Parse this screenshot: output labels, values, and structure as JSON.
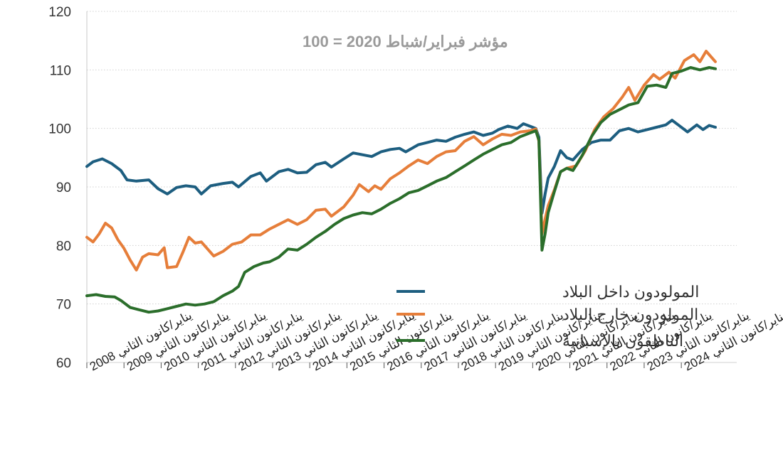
{
  "chart_data": {
    "type": "line",
    "title": "",
    "subtitle": "مؤشر فبراير/شباط 2020 = 100",
    "xlabel": "",
    "ylabel": "",
    "ylim": [
      60,
      120
    ],
    "yticks": [
      60,
      70,
      80,
      90,
      100,
      110,
      120
    ],
    "grid": "horizontal",
    "legend_position": "center-right",
    "x_start": "2008-01",
    "x_end": "2024-12",
    "frequency": "monthly",
    "x_tick_labels": [
      "يناير/كانون الثاني 2008",
      "يناير/كانون الثاني 2009",
      "يناير/كانون الثاني 2010",
      "يناير/كانون الثاني 2011",
      "يناير/كانون الثاني 2012",
      "يناير/كانون الثاني 2013",
      "يناير/كانون الثاني 2014",
      "يناير/كانون الثاني 2015",
      "يناير/كانون الثاني 2016",
      "يناير/كانون الثاني 2017",
      "يناير/كانون الثاني 2018",
      "يناير/كانون الثاني 2019",
      "يناير/كانون الثاني 2020",
      "يناير/كانون الثاني 2021",
      "يناير/كانون الثاني 2022",
      "يناير/كانون الثاني 2023",
      "يناير/كانون الثاني 2024"
    ],
    "series": [
      {
        "name": "المولودون داخل البلاد",
        "color": "#1d5e80",
        "anchors": [
          [
            "2008-01",
            93.5
          ],
          [
            "2008-03",
            94.3
          ],
          [
            "2008-06",
            94.8
          ],
          [
            "2008-09",
            94.0
          ],
          [
            "2008-12",
            92.8
          ],
          [
            "2009-02",
            91.2
          ],
          [
            "2009-05",
            91.0
          ],
          [
            "2009-09",
            91.2
          ],
          [
            "2009-12",
            89.7
          ],
          [
            "2010-03",
            88.8
          ],
          [
            "2010-06",
            89.9
          ],
          [
            "2010-09",
            90.2
          ],
          [
            "2010-12",
            90.0
          ],
          [
            "2011-02",
            88.8
          ],
          [
            "2011-05",
            90.2
          ],
          [
            "2011-09",
            90.6
          ],
          [
            "2011-12",
            90.8
          ],
          [
            "2012-02",
            90.0
          ],
          [
            "2012-06",
            91.8
          ],
          [
            "2012-09",
            92.4
          ],
          [
            "2012-11",
            91.0
          ],
          [
            "2013-03",
            92.6
          ],
          [
            "2013-06",
            93.0
          ],
          [
            "2013-09",
            92.4
          ],
          [
            "2013-12",
            92.5
          ],
          [
            "2014-03",
            93.8
          ],
          [
            "2014-06",
            94.2
          ],
          [
            "2014-08",
            93.4
          ],
          [
            "2014-12",
            94.8
          ],
          [
            "2015-03",
            95.8
          ],
          [
            "2015-06",
            95.5
          ],
          [
            "2015-09",
            95.2
          ],
          [
            "2015-12",
            96.0
          ],
          [
            "2016-03",
            96.4
          ],
          [
            "2016-06",
            96.6
          ],
          [
            "2016-08",
            96.0
          ],
          [
            "2016-12",
            97.2
          ],
          [
            "2017-03",
            97.6
          ],
          [
            "2017-06",
            98.0
          ],
          [
            "2017-09",
            97.8
          ],
          [
            "2017-12",
            98.5
          ],
          [
            "2018-03",
            99.0
          ],
          [
            "2018-06",
            99.4
          ],
          [
            "2018-09",
            98.8
          ],
          [
            "2018-12",
            99.2
          ],
          [
            "2019-02",
            99.8
          ],
          [
            "2019-05",
            100.4
          ],
          [
            "2019-08",
            100.0
          ],
          [
            "2019-10",
            100.8
          ],
          [
            "2019-12",
            100.4
          ],
          [
            "2020-02",
            100.0
          ],
          [
            "2020-03",
            98.5
          ],
          [
            "2020-04",
            85.5
          ],
          [
            "2020-05",
            88.8
          ],
          [
            "2020-06",
            91.5
          ],
          [
            "2020-08",
            93.5
          ],
          [
            "2020-10",
            96.2
          ],
          [
            "2020-12",
            95.0
          ],
          [
            "2021-02",
            94.6
          ],
          [
            "2021-05",
            96.4
          ],
          [
            "2021-08",
            97.6
          ],
          [
            "2021-11",
            98.0
          ],
          [
            "2022-02",
            98.0
          ],
          [
            "2022-05",
            99.6
          ],
          [
            "2022-08",
            100.0
          ],
          [
            "2022-11",
            99.4
          ],
          [
            "2023-02",
            99.8
          ],
          [
            "2023-05",
            100.2
          ],
          [
            "2023-08",
            100.6
          ],
          [
            "2023-10",
            101.4
          ],
          [
            "2023-12",
            100.6
          ],
          [
            "2024-03",
            99.4
          ],
          [
            "2024-06",
            100.6
          ],
          [
            "2024-08",
            99.8
          ],
          [
            "2024-10",
            100.5
          ],
          [
            "2024-12",
            100.2
          ]
        ]
      },
      {
        "name": "المولودون خارج البلاد",
        "color": "#e67e3a",
        "anchors": [
          [
            "2008-01",
            81.4
          ],
          [
            "2008-03",
            80.6
          ],
          [
            "2008-05",
            82.0
          ],
          [
            "2008-07",
            83.8
          ],
          [
            "2008-09",
            83.0
          ],
          [
            "2008-11",
            81.0
          ],
          [
            "2009-01",
            79.5
          ],
          [
            "2009-03",
            77.5
          ],
          [
            "2009-05",
            75.8
          ],
          [
            "2009-07",
            78.0
          ],
          [
            "2009-09",
            78.6
          ],
          [
            "2009-12",
            78.4
          ],
          [
            "2010-02",
            79.6
          ],
          [
            "2010-03",
            76.2
          ],
          [
            "2010-06",
            76.4
          ],
          [
            "2010-08",
            78.8
          ],
          [
            "2010-10",
            81.4
          ],
          [
            "2010-12",
            80.4
          ],
          [
            "2011-02",
            80.6
          ],
          [
            "2011-06",
            78.2
          ],
          [
            "2011-09",
            79.0
          ],
          [
            "2011-12",
            80.2
          ],
          [
            "2012-03",
            80.6
          ],
          [
            "2012-06",
            81.8
          ],
          [
            "2012-09",
            81.8
          ],
          [
            "2012-12",
            82.8
          ],
          [
            "2013-03",
            83.6
          ],
          [
            "2013-06",
            84.4
          ],
          [
            "2013-09",
            83.6
          ],
          [
            "2013-12",
            84.4
          ],
          [
            "2014-03",
            86.0
          ],
          [
            "2014-06",
            86.2
          ],
          [
            "2014-08",
            85.0
          ],
          [
            "2014-12",
            86.6
          ],
          [
            "2015-03",
            88.6
          ],
          [
            "2015-05",
            90.4
          ],
          [
            "2015-08",
            89.2
          ],
          [
            "2015-10",
            90.2
          ],
          [
            "2015-12",
            89.6
          ],
          [
            "2016-03",
            91.4
          ],
          [
            "2016-06",
            92.4
          ],
          [
            "2016-09",
            93.6
          ],
          [
            "2016-12",
            94.6
          ],
          [
            "2017-03",
            94.0
          ],
          [
            "2017-06",
            95.2
          ],
          [
            "2017-09",
            96.0
          ],
          [
            "2017-12",
            96.2
          ],
          [
            "2018-03",
            97.8
          ],
          [
            "2018-06",
            98.6
          ],
          [
            "2018-09",
            97.2
          ],
          [
            "2018-12",
            98.2
          ],
          [
            "2019-03",
            99.0
          ],
          [
            "2019-06",
            98.8
          ],
          [
            "2019-09",
            99.4
          ],
          [
            "2019-12",
            99.6
          ],
          [
            "2020-02",
            99.9
          ],
          [
            "2020-03",
            97.8
          ],
          [
            "2020-04",
            82.0
          ],
          [
            "2020-05",
            84.5
          ],
          [
            "2020-06",
            86.8
          ],
          [
            "2020-08",
            89.5
          ],
          [
            "2020-10",
            92.6
          ],
          [
            "2020-12",
            93.2
          ],
          [
            "2021-03",
            93.6
          ],
          [
            "2021-06",
            96.2
          ],
          [
            "2021-09",
            99.8
          ],
          [
            "2021-12",
            102.0
          ],
          [
            "2022-03",
            103.4
          ],
          [
            "2022-06",
            105.4
          ],
          [
            "2022-08",
            107.0
          ],
          [
            "2022-10",
            104.8
          ],
          [
            "2023-01",
            107.4
          ],
          [
            "2023-04",
            109.2
          ],
          [
            "2023-06",
            108.4
          ],
          [
            "2023-09",
            109.6
          ],
          [
            "2023-11",
            108.6
          ],
          [
            "2024-02",
            111.6
          ],
          [
            "2024-05",
            112.6
          ],
          [
            "2024-07",
            111.4
          ],
          [
            "2024-09",
            113.2
          ],
          [
            "2024-12",
            111.4
          ]
        ]
      },
      {
        "name": "الناطقون بالإسبانية",
        "color": "#2b6e2b",
        "anchors": [
          [
            "2008-01",
            71.4
          ],
          [
            "2008-04",
            71.6
          ],
          [
            "2008-07",
            71.3
          ],
          [
            "2008-10",
            71.2
          ],
          [
            "2008-12",
            70.6
          ],
          [
            "2009-03",
            69.4
          ],
          [
            "2009-06",
            69.0
          ],
          [
            "2009-09",
            68.6
          ],
          [
            "2009-12",
            68.8
          ],
          [
            "2010-03",
            69.2
          ],
          [
            "2010-06",
            69.6
          ],
          [
            "2010-09",
            70.0
          ],
          [
            "2010-12",
            69.8
          ],
          [
            "2011-03",
            70.0
          ],
          [
            "2011-06",
            70.4
          ],
          [
            "2011-09",
            71.4
          ],
          [
            "2011-12",
            72.2
          ],
          [
            "2012-02",
            73.0
          ],
          [
            "2012-04",
            75.4
          ],
          [
            "2012-07",
            76.4
          ],
          [
            "2012-10",
            77.0
          ],
          [
            "2012-12",
            77.2
          ],
          [
            "2013-03",
            78.0
          ],
          [
            "2013-06",
            79.4
          ],
          [
            "2013-09",
            79.2
          ],
          [
            "2013-12",
            80.2
          ],
          [
            "2014-03",
            81.4
          ],
          [
            "2014-06",
            82.4
          ],
          [
            "2014-09",
            83.6
          ],
          [
            "2014-12",
            84.6
          ],
          [
            "2015-03",
            85.2
          ],
          [
            "2015-06",
            85.6
          ],
          [
            "2015-09",
            85.4
          ],
          [
            "2015-12",
            86.2
          ],
          [
            "2016-03",
            87.2
          ],
          [
            "2016-06",
            88.0
          ],
          [
            "2016-09",
            89.0
          ],
          [
            "2016-12",
            89.4
          ],
          [
            "2017-03",
            90.2
          ],
          [
            "2017-06",
            91.0
          ],
          [
            "2017-09",
            91.6
          ],
          [
            "2017-12",
            92.6
          ],
          [
            "2018-03",
            93.6
          ],
          [
            "2018-06",
            94.6
          ],
          [
            "2018-09",
            95.6
          ],
          [
            "2018-12",
            96.4
          ],
          [
            "2019-03",
            97.2
          ],
          [
            "2019-06",
            97.6
          ],
          [
            "2019-09",
            98.6
          ],
          [
            "2019-12",
            99.2
          ],
          [
            "2020-02",
            99.6
          ],
          [
            "2020-03",
            98.0
          ],
          [
            "2020-04",
            79.2
          ],
          [
            "2020-05",
            82.0
          ],
          [
            "2020-06",
            85.6
          ],
          [
            "2020-08",
            89.2
          ],
          [
            "2020-10",
            92.6
          ],
          [
            "2020-12",
            93.2
          ],
          [
            "2021-02",
            92.8
          ],
          [
            "2021-05",
            95.4
          ],
          [
            "2021-08",
            98.6
          ],
          [
            "2021-11",
            101.0
          ],
          [
            "2022-02",
            102.4
          ],
          [
            "2022-05",
            103.2
          ],
          [
            "2022-08",
            104.0
          ],
          [
            "2022-11",
            104.4
          ],
          [
            "2023-02",
            107.2
          ],
          [
            "2023-05",
            107.4
          ],
          [
            "2023-08",
            107.0
          ],
          [
            "2023-10",
            109.4
          ],
          [
            "2024-01",
            109.8
          ],
          [
            "2024-04",
            110.4
          ],
          [
            "2024-07",
            110.0
          ],
          [
            "2024-10",
            110.4
          ],
          [
            "2024-12",
            110.2
          ]
        ]
      }
    ]
  }
}
